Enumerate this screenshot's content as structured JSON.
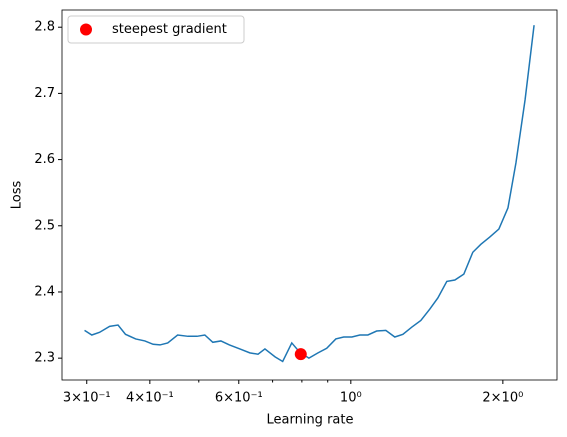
{
  "chart_data": {
    "type": "line",
    "xlabel": "Learning rate",
    "ylabel": "Loss",
    "xscale": "log",
    "x": [
      0.297,
      0.307,
      0.318,
      0.333,
      0.346,
      0.358,
      0.375,
      0.391,
      0.406,
      0.419,
      0.434,
      0.454,
      0.476,
      0.496,
      0.514,
      0.533,
      0.553,
      0.575,
      0.603,
      0.631,
      0.655,
      0.676,
      0.708,
      0.733,
      0.764,
      0.792,
      0.826,
      0.861,
      0.896,
      0.934,
      0.968,
      1.005,
      1.042,
      1.081,
      1.125,
      1.173,
      1.222,
      1.268,
      1.321,
      1.376,
      1.433,
      1.487,
      1.549,
      1.607,
      1.674,
      1.744,
      1.809,
      1.884,
      1.964,
      2.047,
      2.123,
      2.213,
      2.306
    ],
    "series": [
      {
        "color": "#1f77b4",
        "values": [
          2.342,
          2.335,
          2.339,
          2.348,
          2.35,
          2.336,
          2.329,
          2.326,
          2.321,
          2.32,
          2.323,
          2.335,
          2.333,
          2.333,
          2.335,
          2.324,
          2.326,
          2.32,
          2.314,
          2.308,
          2.306,
          2.314,
          2.302,
          2.295,
          2.323,
          2.309,
          2.3,
          2.308,
          2.315,
          2.329,
          2.332,
          2.332,
          2.335,
          2.335,
          2.341,
          2.342,
          2.332,
          2.336,
          2.347,
          2.357,
          2.374,
          2.391,
          2.416,
          2.418,
          2.427,
          2.46,
          2.472,
          2.483,
          2.495,
          2.527,
          2.595,
          2.69,
          2.803
        ]
      }
    ],
    "highlight": {
      "name": "steepest gradient",
      "color": "#ff0000",
      "x": 0.796,
      "value": 2.306
    },
    "legend": "upper left",
    "xlim": [
      0.268,
      2.56
    ],
    "xticks": [
      {
        "value": 0.3,
        "label": "3×10⁻¹"
      },
      {
        "value": 0.4,
        "label": "4×10⁻¹"
      },
      {
        "value": 0.6,
        "label": "6×10⁻¹"
      },
      {
        "value": 1,
        "label": "10⁰"
      },
      {
        "value": 2,
        "label": "2×10⁰"
      }
    ],
    "xminorticks": [
      0.5,
      0.7,
      0.8,
      0.9
    ],
    "ylim": [
      2.267,
      2.826
    ],
    "yticks": [
      {
        "value": 2.3,
        "label": "2.3"
      },
      {
        "value": 2.4,
        "label": "2.4"
      },
      {
        "value": 2.5,
        "label": "2.5"
      },
      {
        "value": 2.6,
        "label": "2.6"
      },
      {
        "value": 2.7,
        "label": "2.7"
      },
      {
        "value": 2.8,
        "label": "2.8"
      }
    ]
  }
}
